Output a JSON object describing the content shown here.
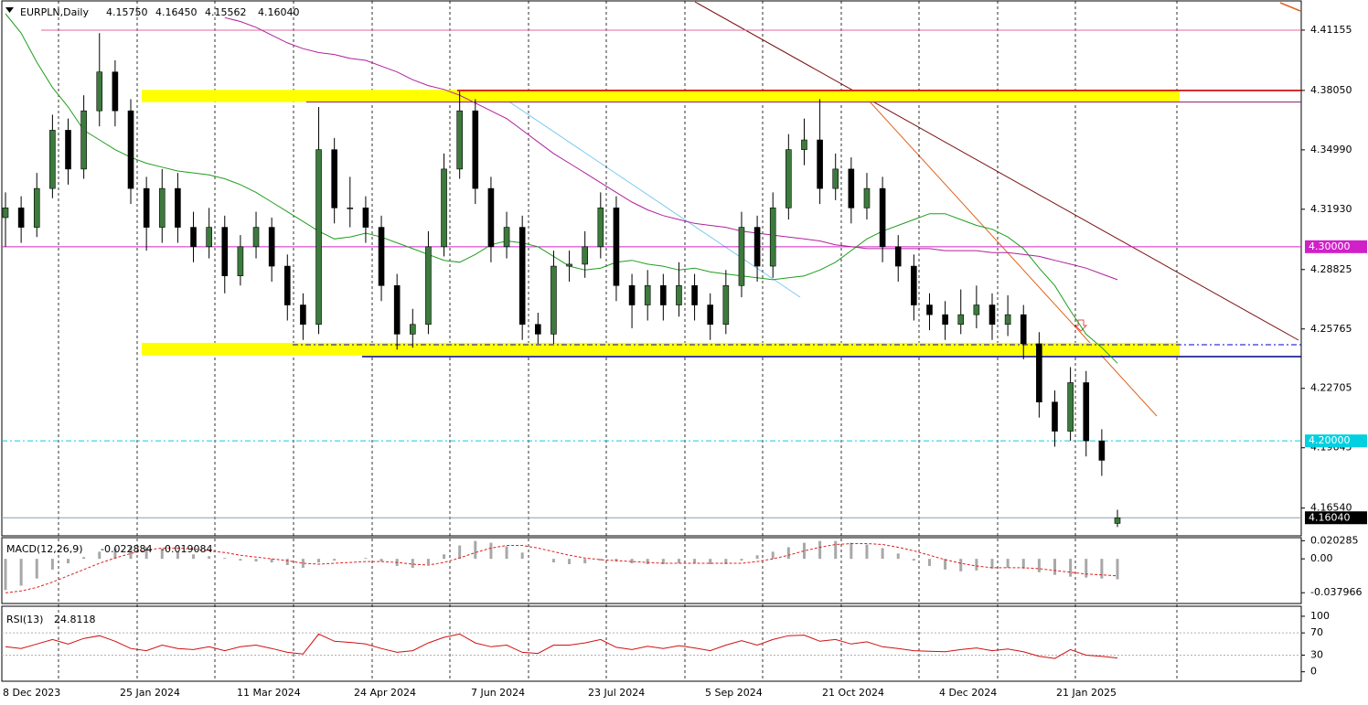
{
  "header": {
    "symbol": "EURPLN,Daily",
    "ohlc": [
      "4.15750",
      "4.16450",
      "4.15562",
      "4.16040"
    ]
  },
  "chart_data": [
    {
      "type": "candlestick",
      "x_labels": [
        "8 Dec 2023",
        "25 Jan 2024",
        "11 Mar 2024",
        "24 Apr 2024",
        "7 Jun 2024",
        "23 Jul 2024",
        "5 Sep 2024",
        "21 Oct 2024",
        "4 Dec 2024",
        "21 Jan 2025"
      ],
      "bull_color": "#3d7a3d",
      "bear_color": "#000000",
      "candles": [
        [
          4.315,
          4.328,
          4.3,
          4.32
        ],
        [
          4.32,
          4.326,
          4.302,
          4.31
        ],
        [
          4.31,
          4.338,
          4.305,
          4.33
        ],
        [
          4.33,
          4.368,
          4.325,
          4.36
        ],
        [
          4.36,
          4.366,
          4.332,
          4.34
        ],
        [
          4.34,
          4.378,
          4.335,
          4.37
        ],
        [
          4.37,
          4.41,
          4.362,
          4.39
        ],
        [
          4.39,
          4.396,
          4.362,
          4.37
        ],
        [
          4.37,
          4.376,
          4.322,
          4.33
        ],
        [
          4.33,
          4.336,
          4.298,
          4.31
        ],
        [
          4.31,
          4.34,
          4.302,
          4.33
        ],
        [
          4.33,
          4.338,
          4.302,
          4.31
        ],
        [
          4.31,
          4.318,
          4.292,
          4.3
        ],
        [
          4.3,
          4.32,
          4.294,
          4.31
        ],
        [
          4.31,
          4.316,
          4.276,
          4.285
        ],
        [
          4.285,
          4.306,
          4.28,
          4.3
        ],
        [
          4.3,
          4.318,
          4.294,
          4.31
        ],
        [
          4.31,
          4.315,
          4.282,
          4.29
        ],
        [
          4.29,
          4.296,
          4.262,
          4.27
        ],
        [
          4.27,
          4.276,
          4.252,
          4.26
        ],
        [
          4.26,
          4.372,
          4.255,
          4.35
        ],
        [
          4.35,
          4.356,
          4.312,
          4.32
        ],
        [
          4.32,
          4.336,
          4.31,
          4.32
        ],
        [
          4.32,
          4.326,
          4.302,
          4.31
        ],
        [
          4.31,
          4.316,
          4.272,
          4.28
        ],
        [
          4.28,
          4.286,
          4.247,
          4.255
        ],
        [
          4.255,
          4.268,
          4.248,
          4.26
        ],
        [
          4.26,
          4.308,
          4.255,
          4.3
        ],
        [
          4.3,
          4.348,
          4.295,
          4.34
        ],
        [
          4.34,
          4.38,
          4.335,
          4.37
        ],
        [
          4.37,
          4.376,
          4.322,
          4.33
        ],
        [
          4.33,
          4.336,
          4.292,
          4.3
        ],
        [
          4.3,
          4.318,
          4.294,
          4.31
        ],
        [
          4.31,
          4.316,
          4.252,
          4.26
        ],
        [
          4.26,
          4.266,
          4.25,
          4.255
        ],
        [
          4.255,
          4.298,
          4.25,
          4.29
        ],
        [
          4.29,
          4.298,
          4.282,
          4.291
        ],
        [
          4.291,
          4.308,
          4.284,
          4.3
        ],
        [
          4.3,
          4.328,
          4.294,
          4.32
        ],
        [
          4.32,
          4.326,
          4.272,
          4.28
        ],
        [
          4.28,
          4.286,
          4.258,
          4.27
        ],
        [
          4.27,
          4.288,
          4.262,
          4.28
        ],
        [
          4.28,
          4.286,
          4.262,
          4.27
        ],
        [
          4.27,
          4.292,
          4.264,
          4.28
        ],
        [
          4.28,
          4.286,
          4.262,
          4.27
        ],
        [
          4.27,
          4.276,
          4.252,
          4.26
        ],
        [
          4.26,
          4.288,
          4.255,
          4.28
        ],
        [
          4.28,
          4.318,
          4.274,
          4.31
        ],
        [
          4.31,
          4.316,
          4.282,
          4.29
        ],
        [
          4.29,
          4.328,
          4.284,
          4.32
        ],
        [
          4.32,
          4.358,
          4.314,
          4.35
        ],
        [
          4.35,
          4.366,
          4.342,
          4.355
        ],
        [
          4.355,
          4.376,
          4.322,
          4.33
        ],
        [
          4.33,
          4.348,
          4.324,
          4.34
        ],
        [
          4.34,
          4.346,
          4.312,
          4.32
        ],
        [
          4.32,
          4.338,
          4.314,
          4.33
        ],
        [
          4.33,
          4.336,
          4.292,
          4.3
        ],
        [
          4.3,
          4.306,
          4.282,
          4.29
        ],
        [
          4.29,
          4.296,
          4.262,
          4.27
        ],
        [
          4.27,
          4.276,
          4.257,
          4.265
        ],
        [
          4.265,
          4.272,
          4.252,
          4.26
        ],
        [
          4.26,
          4.278,
          4.255,
          4.265
        ],
        [
          4.265,
          4.28,
          4.258,
          4.27
        ],
        [
          4.27,
          4.276,
          4.252,
          4.26
        ],
        [
          4.26,
          4.275,
          4.254,
          4.265
        ],
        [
          4.265,
          4.27,
          4.242,
          4.25
        ],
        [
          4.25,
          4.256,
          4.212,
          4.22
        ],
        [
          4.22,
          4.226,
          4.197,
          4.205
        ],
        [
          4.205,
          4.238,
          4.2,
          4.23
        ],
        [
          4.23,
          4.236,
          4.192,
          4.2
        ],
        [
          4.2,
          4.206,
          4.182,
          4.19
        ],
        [
          4.1575,
          4.1645,
          4.15562,
          4.1604
        ]
      ],
      "ma_series": [
        {
          "color": "#1f9e1f",
          "values": [
            4.42,
            4.41,
            4.395,
            4.382,
            4.372,
            4.36,
            4.355,
            4.35,
            4.346,
            4.343,
            4.341,
            4.339,
            4.338,
            4.337,
            4.335,
            4.332,
            4.328,
            4.323,
            4.318,
            4.313,
            4.308,
            4.304,
            4.305,
            4.307,
            4.305,
            4.302,
            4.299,
            4.296,
            4.293,
            4.292,
            4.296,
            4.301,
            4.303,
            4.302,
            4.3,
            4.295,
            4.29,
            4.288,
            4.289,
            4.292,
            4.293,
            4.291,
            4.29,
            4.288,
            4.289,
            4.287,
            4.286,
            4.285,
            4.284,
            4.283,
            4.284,
            4.285,
            4.288,
            4.292,
            4.298,
            4.304,
            4.308,
            4.311,
            4.314,
            4.317,
            4.317,
            4.314,
            4.311,
            4.309,
            4.305,
            4.299,
            4.289,
            4.28,
            4.267,
            4.255,
            4.248,
            4.24
          ]
        },
        {
          "color": "#b0209e",
          "values": [
            null,
            null,
            null,
            null,
            null,
            null,
            null,
            null,
            null,
            null,
            null,
            null,
            null,
            null,
            4.418,
            4.416,
            4.413,
            4.409,
            4.405,
            4.402,
            4.4,
            4.399,
            4.397,
            4.396,
            4.393,
            4.39,
            4.386,
            4.383,
            4.381,
            4.378,
            4.374,
            4.37,
            4.366,
            4.36,
            4.354,
            4.348,
            4.343,
            4.338,
            4.333,
            4.328,
            4.323,
            4.319,
            4.316,
            4.314,
            4.312,
            4.311,
            4.31,
            4.308,
            4.307,
            4.306,
            4.305,
            4.304,
            4.303,
            4.301,
            4.3,
            4.299,
            4.299,
            4.299,
            4.299,
            4.299,
            4.298,
            4.298,
            4.298,
            4.297,
            4.297,
            4.296,
            4.295,
            4.293,
            4.291,
            4.289,
            4.286,
            4.283
          ]
        }
      ],
      "zones": [
        {
          "color": "#ffff00",
          "range": [
            4.3745,
            4.3808
          ]
        },
        {
          "color": "#ffff00",
          "range": [
            4.244,
            4.2505
          ]
        }
      ],
      "hlines": [
        {
          "value": 4.41155,
          "color": "#e06a9c"
        },
        {
          "value": 4.3805,
          "color": "#cc0000"
        },
        {
          "value": 4.3745,
          "color": "#8b1a6b"
        },
        {
          "value": 4.2434,
          "color": "#000080"
        },
        {
          "value": 4.2495,
          "color": "#0000cd"
        }
      ],
      "levels": [
        {
          "value": 4.3,
          "label": "4.30000",
          "color": "#d020c8"
        },
        {
          "value": 4.2,
          "label": "4.20000",
          "color": "#00d0e0"
        },
        {
          "value": 4.1604,
          "label": "4.16040",
          "color": "#000000"
        }
      ],
      "ylim": [
        4.1511,
        4.4266
      ],
      "yticks": [
        4.41155,
        {
          "value": 4.3805,
          "label": "4.38050"
        },
        {
          "value": 4.3499,
          "label": "4.34990"
        },
        {
          "value": 4.3193,
          "label": "4.31930"
        },
        4.28825,
        4.25765,
        4.22705,
        4.19645,
        {
          "value": 4.1654,
          "label": "4.16540"
        }
      ]
    },
    {
      "type": "macd",
      "title": "MACD(12,26,9)",
      "hist_color": "#a8a8a8",
      "signal_color": "#e02020",
      "macd": [
        -0.035,
        -0.03,
        -0.022,
        -0.012,
        -0.005,
        0.002,
        0.008,
        0.012,
        0.014,
        0.013,
        0.011,
        0.008,
        0.005,
        0.003,
        0.001,
        -0.002,
        -0.003,
        -0.004,
        -0.007,
        -0.01,
        -0.004,
        -0.002,
        0.0,
        0.001,
        -0.003,
        -0.008,
        -0.01,
        -0.006,
        0.005,
        0.015,
        0.02,
        0.018,
        0.014,
        0.007,
        0.0,
        -0.004,
        -0.006,
        -0.005,
        -0.002,
        -0.003,
        -0.005,
        -0.006,
        -0.006,
        -0.005,
        -0.005,
        -0.006,
        -0.006,
        -0.002,
        0.004,
        0.008,
        0.013,
        0.018,
        0.02,
        0.02,
        0.018,
        0.016,
        0.012,
        0.006,
        -0.002,
        -0.008,
        -0.012,
        -0.014,
        -0.013,
        -0.011,
        -0.01,
        -0.011,
        -0.015,
        -0.018,
        -0.02,
        -0.021,
        -0.022,
        -0.022884
      ],
      "signal": [
        -0.038,
        -0.036,
        -0.032,
        -0.026,
        -0.019,
        -0.012,
        -0.005,
        0.001,
        0.006,
        0.01,
        0.012,
        0.012,
        0.011,
        0.009,
        0.007,
        0.004,
        0.002,
        0.0,
        -0.002,
        -0.005,
        -0.006,
        -0.005,
        -0.004,
        -0.003,
        -0.003,
        -0.004,
        -0.006,
        -0.007,
        -0.004,
        0.001,
        0.007,
        0.012,
        0.015,
        0.015,
        0.012,
        0.008,
        0.004,
        0.001,
        -0.001,
        -0.002,
        -0.003,
        -0.004,
        -0.005,
        -0.005,
        -0.005,
        -0.005,
        -0.005,
        -0.005,
        -0.003,
        0.0,
        0.004,
        0.009,
        0.013,
        0.016,
        0.017,
        0.017,
        0.016,
        0.013,
        0.009,
        0.004,
        -0.001,
        -0.005,
        -0.008,
        -0.01,
        -0.01,
        -0.01,
        -0.011,
        -0.013,
        -0.015,
        -0.017,
        -0.018,
        -0.019084
      ],
      "ylim": [
        -0.05,
        0.0237
      ],
      "yticks": [
        0.020285,
        {
          "value": 0,
          "label": "0.00"
        },
        -0.037966
      ]
    },
    {
      "type": "rsi",
      "title": "RSI(13)",
      "color": "#d01010",
      "values": [
        45,
        42,
        50,
        58,
        50,
        60,
        65,
        55,
        42,
        38,
        48,
        42,
        40,
        45,
        38,
        45,
        48,
        42,
        35,
        32,
        68,
        55,
        53,
        50,
        42,
        35,
        38,
        52,
        62,
        68,
        52,
        45,
        48,
        35,
        33,
        48,
        48,
        52,
        58,
        44,
        40,
        46,
        42,
        47,
        43,
        38,
        48,
        56,
        48,
        58,
        65,
        66,
        55,
        58,
        50,
        54,
        45,
        42,
        38,
        37,
        36,
        40,
        43,
        38,
        41,
        36,
        28,
        24,
        40,
        30,
        28,
        24.8118
      ],
      "ylim": [
        -17,
        118
      ],
      "yticks": [
        100,
        70,
        30,
        0
      ],
      "guides": [
        70,
        30
      ]
    }
  ]
}
